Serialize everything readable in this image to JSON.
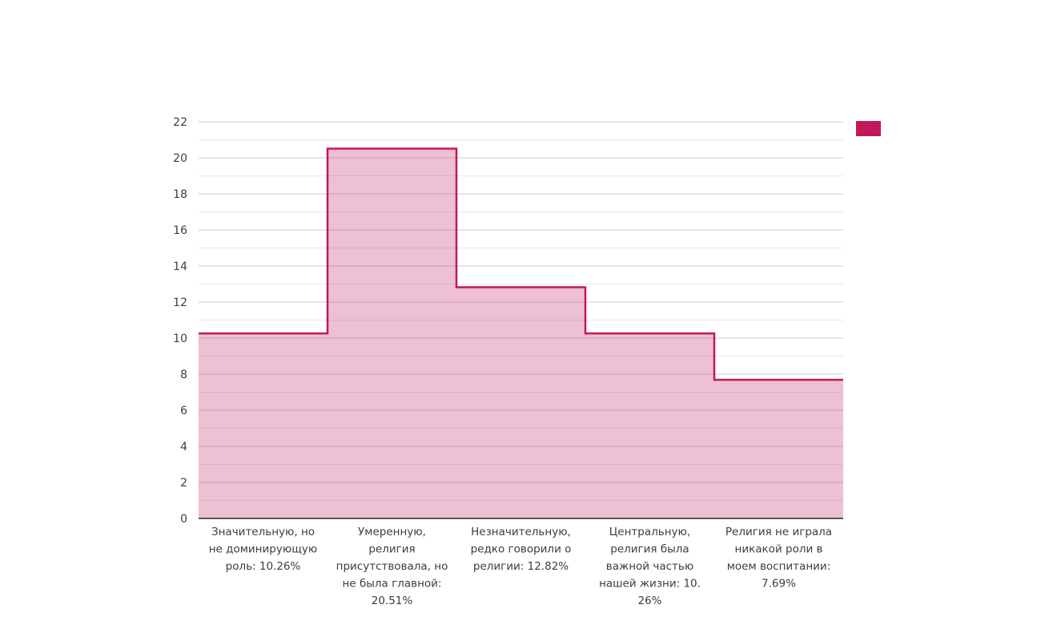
{
  "chart_data": {
    "type": "area",
    "subtype": "step-area-histogram",
    "title": "",
    "xlabel": "",
    "ylabel": "",
    "categories": [
      "Значительную, но не доминирующую роль: 10.26%",
      "Умеренную, религия присутствовала, но не была главной: 20.51%",
      "Незначительную, редко говорили о религии: 12.82%",
      "Центральную, религия была важной частью нашей жизни: 10.26%",
      "Религия не играла никакой роли в моем воспитании: 7.69%"
    ],
    "category_label_lines": [
      [
        "Значительную, но",
        "не доминирующую",
        "роль: 10.26%"
      ],
      [
        "Умеренную,",
        "религия",
        "присутствовала, но",
        "не была главной:",
        "20.51%"
      ],
      [
        "Незначительную,",
        "редко говорили о",
        "религии: 12.82%"
      ],
      [
        "Центральную,",
        "религия была",
        "важной частью",
        "нашей жизни: 10.",
        "26%"
      ],
      [
        "Религия не играла",
        "никакой роли в",
        "моем воспитании:",
        "7.69%"
      ]
    ],
    "values": [
      10.26,
      20.51,
      12.82,
      10.26,
      7.69
    ],
    "ylim": [
      0,
      22
    ],
    "y_major_step": 2,
    "y_minor_step": 1,
    "y_tick_labels": [
      "0",
      "2",
      "4",
      "6",
      "8",
      "10",
      "12",
      "14",
      "16",
      "18",
      "20",
      "22"
    ],
    "grid": true,
    "legend_position": "top-right",
    "legend_entries": [
      {
        "label": "",
        "swatch_color": "#c2185b"
      }
    ],
    "colors": {
      "series_stroke": "#c2185b",
      "series_fill": "rgba(194,24,91,0.27)",
      "major_grid": "#cdcdcd",
      "minor_grid": "#e8e8e8",
      "axis_line": "#262626",
      "tick_label": "#3d3d3d"
    }
  }
}
